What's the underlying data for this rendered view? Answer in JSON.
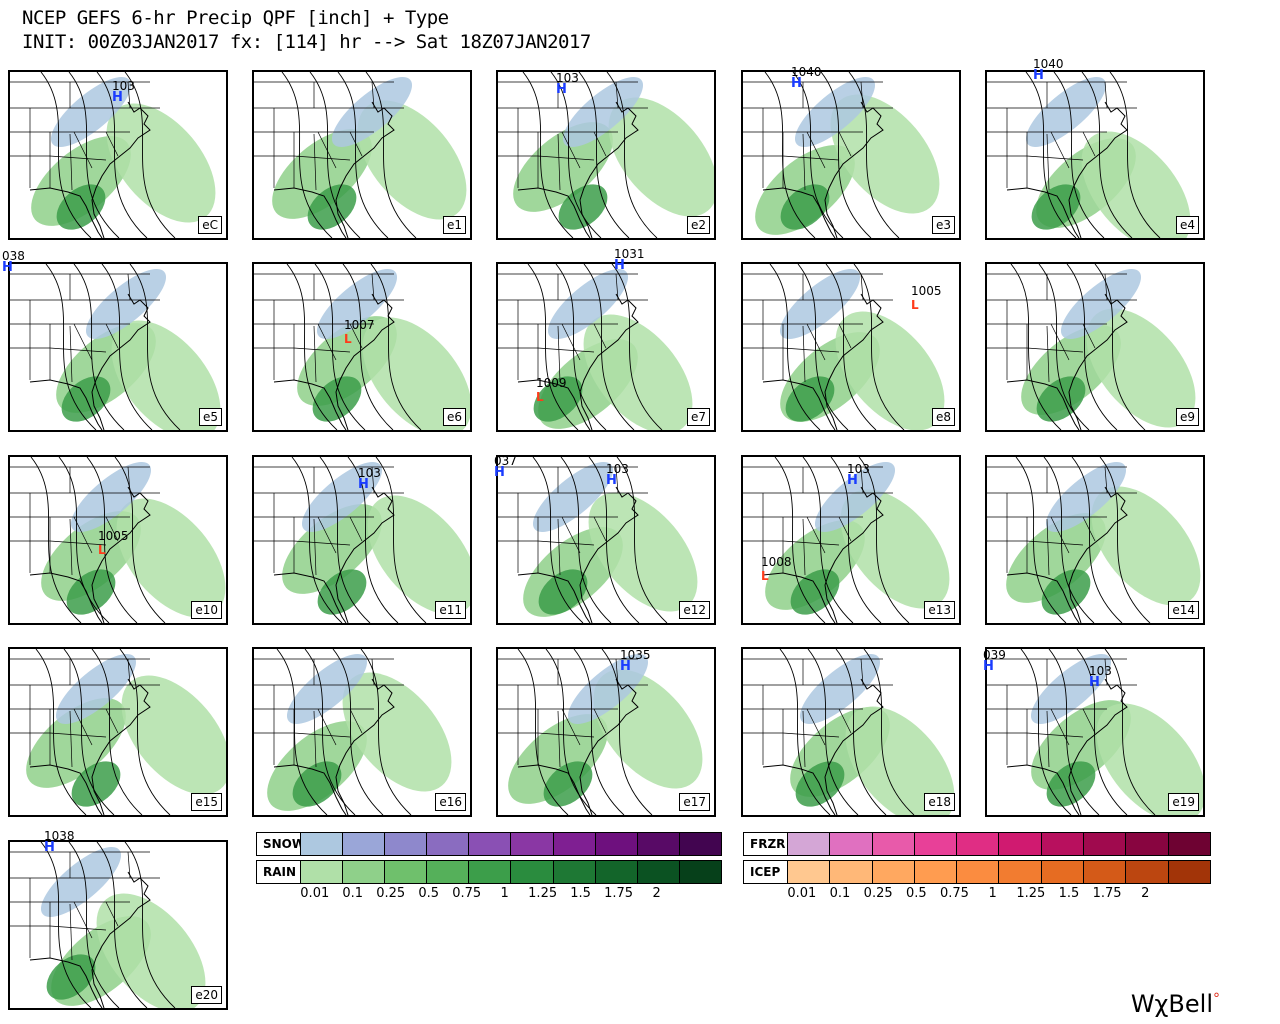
{
  "header": {
    "line1": "NCEP GEFS 6-hr Precip QPF [inch] + Type",
    "line2": "INIT: 00Z03JAN2017 fx: [114] hr --> Sat 18Z07JAN2017"
  },
  "colors": {
    "snow": [
      "#adc8e0",
      "#9aa6d8",
      "#8e88cc",
      "#8a6cc0",
      "#8a50b4",
      "#8a37a4",
      "#7f1f92",
      "#6e107e",
      "#580a66",
      "#420550"
    ],
    "rain": [
      "#b0e0a8",
      "#8fd08a",
      "#6fc06c",
      "#55b05a",
      "#3c9e4a",
      "#2a8c3e",
      "#1e7834",
      "#13652a",
      "#0b5222",
      "#06401a"
    ],
    "frzr": [
      "#d4a6d6",
      "#e070c0",
      "#e85aaa",
      "#e84098",
      "#e02d84",
      "#d01a70",
      "#b8105e",
      "#a00a4e",
      "#880540",
      "#6e0232"
    ],
    "icep": [
      "#ffc890",
      "#ffb878",
      "#ffa860",
      "#ff9c50",
      "#fb8c40",
      "#f27c30",
      "#e66c22",
      "#d45a18",
      "#bc4610",
      "#a23408"
    ]
  },
  "panels": [
    {
      "label": "eC",
      "highs": [
        {
          "num": "103",
          "x": 102,
          "y": 8
        }
      ],
      "lows": []
    },
    {
      "label": "e1",
      "highs": [],
      "lows": []
    },
    {
      "label": "e2",
      "highs": [
        {
          "num": "103",
          "x": 58,
          "y": 0
        }
      ],
      "lows": []
    },
    {
      "label": "e3",
      "highs": [
        {
          "num": "1040",
          "x": 48,
          "y": -6
        }
      ],
      "lows": []
    },
    {
      "label": "e4",
      "highs": [
        {
          "num": "1040",
          "x": 46,
          "y": -14
        }
      ],
      "lows": []
    },
    {
      "label": "e5",
      "highs": [
        {
          "num": "038",
          "x": -8,
          "y": -14
        }
      ],
      "lows": []
    },
    {
      "label": "e6",
      "highs": [],
      "lows": [
        {
          "num": "1007",
          "x": 90,
          "y": 54
        }
      ]
    },
    {
      "label": "e7",
      "highs": [
        {
          "num": "1031",
          "x": 116,
          "y": -16
        }
      ],
      "lows": [
        {
          "num": "1009",
          "x": 38,
          "y": 112
        }
      ]
    },
    {
      "label": "e8",
      "highs": [],
      "lows": [
        {
          "num": "1005",
          "x": 168,
          "y": 20
        }
      ]
    },
    {
      "label": "e9",
      "highs": [],
      "lows": []
    },
    {
      "label": "e10",
      "highs": [],
      "lows": [
        {
          "num": "1005",
          "x": 88,
          "y": 72
        }
      ]
    },
    {
      "label": "e11",
      "highs": [
        {
          "num": "103",
          "x": 104,
          "y": 10
        }
      ],
      "lows": []
    },
    {
      "label": "e12",
      "highs": [
        {
          "num": "037",
          "x": -4,
          "y": -2
        },
        {
          "num": "103",
          "x": 108,
          "y": 6
        }
      ],
      "lows": []
    },
    {
      "label": "e13",
      "highs": [
        {
          "num": "103",
          "x": 104,
          "y": 6
        }
      ],
      "lows": [
        {
          "num": "1008",
          "x": 18,
          "y": 98
        }
      ]
    },
    {
      "label": "e14",
      "highs": [],
      "lows": []
    },
    {
      "label": "e15",
      "highs": [],
      "lows": []
    },
    {
      "label": "e16",
      "highs": [],
      "lows": []
    },
    {
      "label": "e17",
      "highs": [
        {
          "num": "1035",
          "x": 122,
          "y": 0
        }
      ],
      "lows": []
    },
    {
      "label": "e18",
      "highs": [],
      "lows": []
    },
    {
      "label": "e19",
      "highs": [
        {
          "num": "039",
          "x": -4,
          "y": 0
        },
        {
          "num": "103",
          "x": 102,
          "y": 16
        }
      ],
      "lows": []
    },
    {
      "label": "e20",
      "highs": [
        {
          "num": "1038",
          "x": 34,
          "y": -12
        }
      ],
      "lows": []
    }
  ],
  "legend": {
    "snow_label": "SNOW",
    "rain_label": "RAIN",
    "frzr_label": "FRZR",
    "icep_label": "ICEP",
    "ticks": [
      "0.01",
      "0.1",
      "0.25",
      "0.5",
      "0.75",
      "1",
      "1.25",
      "1.5",
      "1.75",
      "2"
    ]
  },
  "logo": {
    "text": "WχBell"
  }
}
